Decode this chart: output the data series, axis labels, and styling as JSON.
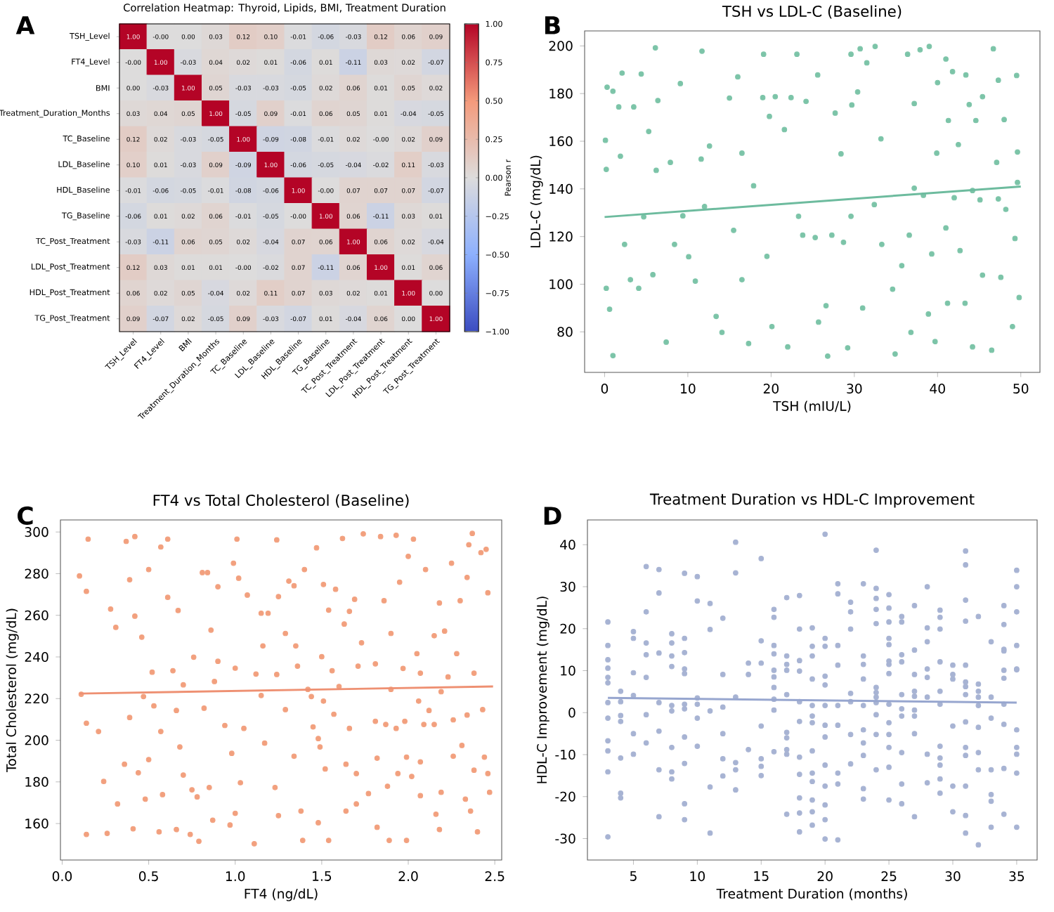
{
  "chart_data": [
    {
      "type": "heatmap",
      "title": "Correlation Heatmap: Thyroid, Lipids, BMI, Treatment Duration",
      "annotations": [
        "A"
      ],
      "categories": [
        "TSH_Level",
        "FT4_Level",
        "BMI",
        "Treatment_Duration_Months",
        "TC_Baseline",
        "LDL_Baseline",
        "HDL_Baseline",
        "TG_Baseline",
        "TC_Post_Treatment",
        "LDL_Post_Treatment",
        "HDL_Post_Treatment",
        "TG_Post_Treatment"
      ],
      "y_categories": [
        "TSH_Level",
        "FT4_Level",
        "BMI",
        "Treatment_Duration_Months",
        "TC_Baseline",
        "LDL_Baseline",
        "HDL_Baseline",
        "TG_Baseline",
        "TC_Post_Treatment",
        "LDL_Post_Treatment",
        "HDL_Post_Treatment",
        "TG_Post_Treatment"
      ],
      "cells": [
        [
          1.0,
          0,
          0,
          0.03,
          0.12,
          0.1,
          -0.01,
          -0.06,
          -0.03,
          0.12,
          0.06,
          0.09
        ],
        [
          0,
          1.0,
          -0.03,
          0.04,
          0.02,
          0.01,
          -0.06,
          0.01,
          -0.11,
          0.03,
          0.02,
          -0.07
        ],
        [
          0,
          -0.03,
          1.0,
          0.05,
          -0.03,
          -0.03,
          -0.05,
          0.02,
          0.06,
          0.01,
          0.05,
          0.02
        ],
        [
          0.03,
          0.04,
          0.05,
          1.0,
          -0.05,
          0.09,
          -0.01,
          0.06,
          0.05,
          0.01,
          -0.04,
          -0.05
        ],
        [
          0.12,
          0.02,
          -0.03,
          -0.05,
          1.0,
          -0.09,
          -0.08,
          -0.01,
          0.02,
          0,
          0.02,
          0.09
        ],
        [
          0.1,
          0.01,
          -0.03,
          0.09,
          -0.09,
          1.0,
          -0.06,
          -0.05,
          -0.04,
          -0.02,
          0.11,
          -0.03
        ],
        [
          -0.01,
          -0.06,
          -0.05,
          -0.01,
          -0.08,
          -0.06,
          1.0,
          0,
          0.07,
          0.07,
          0.07,
          -0.07
        ],
        [
          -0.06,
          0.01,
          0.02,
          0.06,
          -0.01,
          -0.05,
          0,
          1.0,
          0.06,
          -0.11,
          0.03,
          0.01
        ],
        [
          -0.03,
          -0.11,
          0.06,
          0.05,
          0.02,
          -0.04,
          0.07,
          0.06,
          1.0,
          0.06,
          0.02,
          -0.04
        ],
        [
          0.12,
          0.03,
          0.01,
          0.01,
          0,
          -0.02,
          0.07,
          -0.11,
          0.06,
          1.0,
          0.01,
          0.06
        ],
        [
          0.06,
          0.02,
          0.05,
          -0.04,
          0.02,
          0.11,
          0.07,
          0.03,
          0.02,
          0.01,
          1.0,
          0
        ],
        [
          0.09,
          -0.07,
          0.02,
          -0.05,
          0.09,
          -0.03,
          -0.07,
          0.01,
          -0.04,
          0.06,
          0,
          1.0
        ]
      ],
      "cell_labels": [
        [
          "1.00",
          "-0.00",
          "0.00",
          "0.03",
          "0.12",
          "0.10",
          "-0.01",
          "-0.06",
          "-0.03",
          "0.12",
          "0.06",
          "0.09"
        ],
        [
          "-0.00",
          "1.00",
          "-0.03",
          "0.04",
          "0.02",
          "0.01",
          "-0.06",
          "0.01",
          "-0.11",
          "0.03",
          "0.02",
          "-0.07"
        ],
        [
          "0.00",
          "-0.03",
          "1.00",
          "0.05",
          "-0.03",
          "-0.03",
          "-0.05",
          "0.02",
          "0.06",
          "0.01",
          "0.05",
          "0.02"
        ],
        [
          "0.03",
          "0.04",
          "0.05",
          "1.00",
          "-0.05",
          "0.09",
          "-0.01",
          "0.06",
          "0.05",
          "0.01",
          "-0.04",
          "-0.05"
        ],
        [
          "0.12",
          "0.02",
          "-0.03",
          "-0.05",
          "1.00",
          "-0.09",
          "-0.08",
          "-0.01",
          "0.02",
          "-0.00",
          "0.02",
          "0.09"
        ],
        [
          "0.10",
          "0.01",
          "-0.03",
          "0.09",
          "-0.09",
          "1.00",
          "-0.06",
          "-0.05",
          "-0.04",
          "-0.02",
          "0.11",
          "-0.03"
        ],
        [
          "-0.01",
          "-0.06",
          "-0.05",
          "-0.01",
          "-0.08",
          "-0.06",
          "1.00",
          "-0.00",
          "0.07",
          "0.07",
          "0.07",
          "-0.07"
        ],
        [
          "-0.06",
          "0.01",
          "0.02",
          "0.06",
          "-0.01",
          "-0.05",
          "-0.00",
          "1.00",
          "0.06",
          "-0.11",
          "0.03",
          "0.01"
        ],
        [
          "-0.03",
          "-0.11",
          "0.06",
          "0.05",
          "0.02",
          "-0.04",
          "0.07",
          "0.06",
          "1.00",
          "0.06",
          "0.02",
          "-0.04"
        ],
        [
          "0.12",
          "0.03",
          "0.01",
          "0.01",
          "-0.00",
          "-0.02",
          "0.07",
          "-0.11",
          "0.06",
          "1.00",
          "0.01",
          "0.06"
        ],
        [
          "0.06",
          "0.02",
          "0.05",
          "-0.04",
          "0.02",
          "0.11",
          "0.07",
          "0.03",
          "0.02",
          "0.01",
          "1.00",
          "0.00"
        ],
        [
          "0.09",
          "-0.07",
          "0.02",
          "-0.05",
          "0.09",
          "-0.03",
          "-0.07",
          "0.01",
          "-0.04",
          "0.06",
          "0.00",
          "1.00"
        ]
      ],
      "clim": [
        -1,
        1
      ],
      "clabel": "Pearson r",
      "cticks": [
        {
          "value": -1,
          "label": "−1.00"
        },
        {
          "value": -0.75,
          "label": "−0.75"
        },
        {
          "value": -0.5,
          "label": "−0.50"
        },
        {
          "value": -0.25,
          "label": "−0.25"
        },
        {
          "value": 0,
          "label": "0.00"
        },
        {
          "value": 0.25,
          "label": "0.25"
        },
        {
          "value": 0.5,
          "label": "0.50"
        },
        {
          "value": 0.75,
          "label": "0.75"
        },
        {
          "value": 1,
          "label": "1.00"
        }
      ]
    },
    {
      "type": "scatter",
      "title": "TSH vs LDL-C (Baseline)",
      "annotations": [
        "B"
      ],
      "xlabel": "TSH (mIU/L)",
      "ylabel": "LDL-C (mg/dL)",
      "xlim": [
        -2.4,
        52.3
      ],
      "ylim": [
        63,
        206.3
      ],
      "xticks": [
        0,
        10,
        20,
        30,
        40,
        50
      ],
      "yticks": [
        80,
        100,
        120,
        140,
        160,
        180,
        200
      ],
      "series": [
        {
          "type": "scatter",
          "color": "#7cc4a8",
          "x": [
            0.2,
            0.3,
            0.1,
            0.2,
            0.6,
            1.0,
            1.0,
            1.7,
            1.9,
            2.1,
            2.4,
            3.1,
            3.5,
            4.1,
            4.4,
            4.7,
            5.3,
            5.8,
            6.1,
            6.4,
            6.2,
            7.4,
            7.9,
            8.4,
            9.1,
            9.4,
            10.1,
            10.9,
            11.7,
            11.6,
            12.0,
            12.6,
            13.4,
            14.1,
            15.0,
            15.5,
            16.0,
            16.5,
            16.5,
            17.3,
            17.9,
            19.0,
            19.1,
            19.5,
            19.8,
            20.1,
            20.5,
            21.6,
            22.0,
            22.4,
            23.1,
            23.3,
            23.8,
            24.2,
            25.3,
            25.6,
            25.7,
            26.6,
            26.8,
            27.3,
            27.7,
            28.4,
            28.7,
            29.2,
            29.6,
            29.7,
            29.6,
            30.4,
            30.7,
            31.0,
            31.5,
            32.4,
            32.5,
            33.2,
            33.3,
            34.6,
            34.9,
            35.7,
            36.4,
            36.6,
            36.8,
            37.2,
            37.2,
            37.9,
            38.3,
            38.9,
            39.0,
            39.3,
            40.0,
            39.9,
            39.7,
            41.0,
            41.0,
            41.3,
            41.2,
            41.8,
            42.0,
            42.5,
            42.7,
            43.3,
            43.4,
            43.8,
            44.2,
            44.2,
            44.6,
            45.1,
            45.4,
            45.4,
            46.5,
            46.7,
            47.1,
            47.3,
            47.3,
            47.6,
            48.0,
            48.2,
            49.0,
            49.3,
            49.5,
            49.6,
            49.6,
            49.8
          ],
          "values": [
            98.3,
            182.7,
            160.4,
            148.2,
            89.5,
            70,
            181,
            174.4,
            153.7,
            188.6,
            116.7,
            101.9,
            174.4,
            98.3,
            188.2,
            128.3,
            164.1,
            104,
            199.2,
            177.1,
            147.8,
            75.7,
            151.1,
            116.7,
            184.2,
            128.7,
            111.5,
            101.3,
            197.8,
            152.5,
            132.6,
            158,
            86.5,
            79.8,
            178.1,
            122.6,
            187,
            155,
            101.9,
            75.1,
            141.3,
            178.3,
            196.5,
            111.7,
            170.4,
            82.2,
            178.7,
            164.9,
            73.7,
            178.3,
            196.5,
            128.5,
            120.6,
            176.7,
            119.6,
            187.8,
            84.1,
            91,
            69.8,
            120.6,
            171.8,
            154.7,
            117.6,
            73.3,
            196.5,
            175.2,
            128.5,
            180.7,
            198.8,
            90,
            192.9,
            133.4,
            199.8,
            161,
            116.7,
            97.9,
            70.7,
            107.8,
            196.5,
            120.6,
            79.8,
            175.8,
            140.3,
            198.4,
            137.3,
            87.5,
            199.8,
            112.7,
            184.6,
            155,
            75.9,
            194.5,
            123.6,
            168.7,
            92,
            189.2,
            136.3,
            158.6,
            114.1,
            92,
            187.8,
            175.4,
            139.3,
            73.7,
            168.7,
            135.4,
            178.7,
            103.8,
            72.3,
            198.8,
            151.1,
            185.6,
            135.8,
            102.9,
            169.1,
            131.4,
            82.2,
            119.2,
            187.6,
            155.5,
            142.7,
            94.4
          ]
        },
        {
          "type": "line",
          "color": "#6dbb9e",
          "x": [
            0,
            50
          ],
          "values": [
            128.2,
            141
          ]
        }
      ]
    },
    {
      "type": "scatter",
      "title": "FT4 vs Total Cholesterol (Baseline)",
      "annotations": [
        "C"
      ],
      "xlabel": "FT4 (ng/dL)",
      "ylabel": "Total Cholesterol (mg/dL)",
      "xlim": [
        -0.01,
        2.54
      ],
      "ylim": [
        142.5,
        305.8
      ],
      "xticks": [
        {
          "value": 0,
          "label": "0.0"
        },
        {
          "value": 0.5,
          "label": "0.5"
        },
        {
          "value": 1,
          "label": "1.0"
        },
        {
          "value": 1.5,
          "label": "1.5"
        },
        {
          "value": 2,
          "label": "2.0"
        },
        {
          "value": 2.5,
          "label": "2.5"
        }
      ],
      "yticks": [
        160,
        180,
        200,
        220,
        240,
        260,
        280,
        300
      ],
      "series": [
        {
          "type": "scatter",
          "color": "#f2a07e",
          "x": [
            0.1,
            0.11,
            0.14,
            0.15,
            0.14,
            0.14,
            0.21,
            0.24,
            0.26,
            0.28,
            0.31,
            0.32,
            0.37,
            0.36,
            0.39,
            0.39,
            0.41,
            0.42,
            0.42,
            0.44,
            0.46,
            0.47,
            0.48,
            0.5,
            0.5,
            0.52,
            0.53,
            0.56,
            0.57,
            0.57,
            0.58,
            0.61,
            0.61,
            0.64,
            0.66,
            0.66,
            0.67,
            0.68,
            0.7,
            0.7,
            0.74,
            0.75,
            0.76,
            0.78,
            0.79,
            0.81,
            0.82,
            0.84,
            0.85,
            0.86,
            0.87,
            0.88,
            0.9,
            0.9,
            0.94,
            0.97,
            0.98,
            0.99,
            1.0,
            1.0,
            1.01,
            1.02,
            1.03,
            1.05,
            1.07,
            1.11,
            1.12,
            1.15,
            1.15,
            1.16,
            1.17,
            1.19,
            1.23,
            1.24,
            1.24,
            1.25,
            1.25,
            1.29,
            1.29,
            1.31,
            1.34,
            1.34,
            1.35,
            1.36,
            1.38,
            1.39,
            1.4,
            1.42,
            1.44,
            1.45,
            1.47,
            1.48,
            1.48,
            1.49,
            1.5,
            1.51,
            1.51,
            1.52,
            1.54,
            1.54,
            1.56,
            1.57,
            1.58,
            1.6,
            1.62,
            1.63,
            1.64,
            1.64,
            1.66,
            1.66,
            1.69,
            1.7,
            1.71,
            1.7,
            1.73,
            1.74,
            1.77,
            1.81,
            1.81,
            1.82,
            1.84,
            1.82,
            1.86,
            1.87,
            1.88,
            1.9,
            1.89,
            1.9,
            1.93,
            1.93,
            1.94,
            1.95,
            1.97,
            1.99,
            1.98,
            1.99,
            2.0,
            2.02,
            2.03,
            2.05,
            2.06,
            2.07,
            2.07,
            2.09,
            2.07,
            2.1,
            2.12,
            2.15,
            2.15,
            2.16,
            2.18,
            2.19,
            2.18,
            2.19,
            2.21,
            2.23,
            2.25,
            2.26,
            2.26,
            2.28,
            2.3,
            2.31,
            2.33,
            2.34,
            2.34,
            2.35,
            2.36,
            2.37,
            2.38,
            2.38,
            2.4,
            2.42,
            2.43,
            2.44,
            2.45,
            2.46,
            2.46,
            2.47
          ],
          "values": [
            278.9,
            222.1,
            271.5,
            296.6,
            154.8,
            208.2,
            204.2,
            180.2,
            155.3,
            263,
            254.2,
            169.4,
            295.5,
            188.5,
            277.1,
            210.9,
            157.5,
            259.6,
            297.8,
            184.4,
            249.5,
            221,
            171.7,
            282,
            190.7,
            232.7,
            216.5,
            156,
            292.8,
            204.2,
            173.9,
            296.6,
            268.6,
            233.4,
            157.1,
            214.3,
            262.3,
            196.8,
            226.6,
            183.3,
            154.8,
            176.2,
            239.9,
            172.8,
            151.5,
            280.5,
            215.4,
            280.5,
            177.3,
            252.9,
            161.6,
            228.2,
            273.7,
            237.9,
            207.1,
            159.3,
            193.7,
            285,
            234.6,
            164.9,
            296.6,
            277.8,
            179.6,
            205.7,
            269.7,
            150.3,
            231.8,
            221.5,
            261,
            245.3,
            198.6,
            261,
            177.3,
            296.2,
            231.6,
            163.8,
            269,
            251.3,
            214.7,
            276.4,
            192.3,
            274.2,
            245.3,
            235.6,
            166,
            151.9,
            282,
            224.4,
            221,
            206.4,
            292.4,
            200.8,
            160.4,
            196.8,
            240.1,
            218.8,
            274.8,
            186.2,
            151.9,
            262.5,
            233.4,
            212.5,
            272.5,
            225.8,
            296.9,
            255.8,
            166,
            188.5,
            261.9,
            205.7,
            267.7,
            184,
            235.6,
            169.4,
            246.8,
            299.1,
            174.4,
            236.7,
            209.1,
            158.2,
            297.8,
            191.4,
            267,
            207.6,
            177.9,
            224.4,
            151.9,
            251.3,
            298.4,
            205.7,
            184,
            275.9,
            234.5,
            191.9,
            209.1,
            151.9,
            288.3,
            182.6,
            296.6,
            241.6,
            218.8,
            189.6,
            232.2,
            207.6,
            173.4,
            282,
            214.3,
            207.6,
            250.2,
            164.5,
            265.9,
            223.3,
            157.1,
            175,
            252.4,
            230.4,
            285,
            209.8,
            192.3,
            241.6,
            267,
            197.5,
            171.7,
            278.2,
            212.1,
            293.9,
            166,
            299.3,
            232.2,
            185.6,
            156,
            290.1,
            214.7,
            191.9,
            291.7,
            270.8,
            184,
            175
          ]
        },
        {
          "type": "line",
          "color": "#ee9072",
          "x": [
            0.1,
            2.49
          ],
          "values": [
            222.4,
            225.8
          ]
        }
      ]
    },
    {
      "type": "scatter",
      "title": "Treatment Duration vs HDL-C Improvement",
      "annotations": [
        "D"
      ],
      "xlabel": "Treatment Duration (months)",
      "ylabel": "HDL-C Improvement (mg/dL)",
      "xlim": [
        1.4,
        36.6
      ],
      "ylim": [
        -35.1,
        45.9
      ],
      "xticks": [
        5,
        10,
        15,
        20,
        25,
        30,
        35
      ],
      "yticks": [
        -30,
        -20,
        -10,
        0,
        10,
        20,
        30,
        40
      ],
      "series": [
        {
          "type": "scatter",
          "color": "#a7b3d3",
          "x": [
            3,
            3,
            3,
            3,
            3,
            3,
            3,
            3,
            3,
            3,
            3,
            3,
            4,
            4,
            4,
            4,
            4,
            4,
            4,
            5,
            5,
            5,
            5,
            5,
            5,
            6,
            6,
            6,
            6,
            6,
            6,
            6,
            7,
            7,
            7,
            7,
            7,
            7,
            7,
            8,
            8,
            8,
            8,
            8,
            8,
            8,
            8,
            8,
            9,
            9,
            9,
            9,
            9,
            9,
            9,
            9,
            9,
            9,
            9,
            10,
            10,
            10,
            10,
            10,
            10,
            11,
            11,
            11,
            11,
            11,
            12,
            12,
            12,
            12,
            12,
            12,
            13,
            13,
            13,
            13,
            13,
            13,
            14,
            14,
            14,
            15,
            15,
            15,
            15,
            15,
            15,
            15,
            16,
            16,
            16,
            16,
            16,
            16,
            16,
            16,
            16,
            16,
            17,
            17,
            17,
            17,
            17,
            17,
            17,
            17,
            17,
            17,
            18,
            18,
            18,
            18,
            18,
            18,
            18,
            18,
            18,
            18,
            18,
            19,
            19,
            19,
            19,
            19,
            19,
            19,
            19,
            19,
            19,
            19,
            19,
            19,
            20,
            20,
            20,
            20,
            20,
            20,
            20,
            20,
            20,
            20,
            20,
            20,
            20,
            21,
            21,
            21,
            21,
            21,
            21,
            21,
            21,
            21,
            22,
            22,
            22,
            22,
            22,
            22,
            22,
            23,
            23,
            23,
            23,
            23,
            23,
            23,
            23,
            23,
            23,
            24,
            24,
            24,
            24,
            24,
            24,
            24,
            24,
            24,
            24,
            24,
            24,
            25,
            25,
            25,
            25,
            25,
            25,
            25,
            25,
            25,
            25,
            25,
            25,
            25,
            25,
            26,
            26,
            26,
            26,
            26,
            26,
            26,
            26,
            26,
            26,
            27,
            27,
            27,
            27,
            27,
            27,
            27,
            27,
            27,
            28,
            28,
            28,
            28,
            28,
            28,
            28,
            28,
            29,
            29,
            29,
            29,
            29,
            29,
            29,
            29,
            29,
            29,
            29,
            30,
            30,
            30,
            30,
            30,
            30,
            31,
            31,
            31,
            31,
            31,
            31,
            31,
            31,
            31,
            31,
            31,
            31,
            31,
            31,
            32,
            32,
            32,
            32,
            32,
            32,
            32,
            32,
            32,
            33,
            33,
            33,
            33,
            33,
            33,
            33,
            34,
            34,
            34,
            34,
            34,
            34,
            34,
            34,
            34,
            34,
            35,
            35,
            35,
            35,
            35,
            35,
            35,
            35,
            35,
            35,
            35
          ],
          "values": [
            21.6,
            16,
            12.6,
            10.6,
            8.4,
            7.1,
            2.4,
            -1.3,
            -6.7,
            -9.1,
            -14.1,
            -29.6,
            5.1,
            2.6,
            -0.7,
            -2.1,
            -10.8,
            -19.2,
            -20.3,
            19.3,
            17.7,
            9.5,
            4.1,
            -5,
            -9.9,
            34.8,
            24,
            16.6,
            13.8,
            8.4,
            -0.5,
            -7.2,
            34.1,
            28.5,
            14.2,
            2.4,
            -4.4,
            -13.6,
            -24.8,
            18.8,
            16.6,
            13.5,
            11,
            1.7,
            0.4,
            -8.3,
            -14.1,
            -15.8,
            33.2,
            17.7,
            14.3,
            10.4,
            9.3,
            2,
            0.9,
            -5.8,
            -12.1,
            -21.7,
            -25.5,
            32.4,
            26.6,
            3.5,
            2,
            -1.3,
            -8,
            26,
            19.8,
            0.4,
            -17.7,
            -28.7,
            22.5,
            9.1,
            1.3,
            -5,
            -11,
            -15.1,
            40.6,
            33.3,
            3.7,
            -11.9,
            -13.6,
            -18.4,
            11.8,
            9.1,
            -8.8,
            36.7,
            17.1,
            11.8,
            -3.2,
            -11,
            -12.8,
            -15,
            24.6,
            22.7,
            16,
            14,
            10.1,
            8.5,
            6,
            3.2,
            0.6,
            -9.3,
            27.4,
            13.5,
            11.5,
            10.1,
            4.3,
            -4.7,
            -6,
            -8.8,
            -9.9,
            -24.2,
            27.9,
            19.9,
            12.4,
            9.9,
            2.6,
            -2.1,
            -10.6,
            -14.7,
            -20.3,
            -23.9,
            -28.4,
            20.2,
            15.8,
            13.5,
            8,
            1.7,
            -0.8,
            -2.4,
            -9.1,
            -14.4,
            -16.4,
            -20.8,
            -23.6,
            -26.8,
            42.5,
            17.7,
            15.8,
            8.7,
            6.6,
            1.7,
            -3,
            -5.8,
            -12.5,
            -17.5,
            -22,
            -25.5,
            -30.1,
            30.7,
            28.3,
            16,
            11.3,
            1.7,
            -3,
            -14.4,
            -17,
            -30.3,
            26.3,
            24,
            19.9,
            4.6,
            2.6,
            -5.2,
            -12.2,
            30.7,
            13.5,
            11.5,
            8,
            1.7,
            -4.1,
            -7.2,
            -10.2,
            -18.1,
            -20.6,
            38.7,
            29.6,
            27.2,
            24.6,
            21.2,
            6,
            4.8,
            3.7,
            2.4,
            -0.5,
            -5.2,
            -13.6,
            28.1,
            24.9,
            21.6,
            17.7,
            16.2,
            12.3,
            11.5,
            9.3,
            2,
            -2.4,
            -5.2,
            -8.3,
            -13,
            -20.8,
            22.9,
            21.6,
            13.8,
            12.1,
            4.3,
            0.9,
            -0.8,
            -9.5,
            -17,
            -21.7,
            25.5,
            14.9,
            9.1,
            5.1,
            3.9,
            0.6,
            -0.8,
            -5,
            -24.8,
            30,
            20.2,
            16.9,
            10.4,
            8.4,
            3.7,
            -9.9,
            -16.7,
            24.4,
            22.7,
            19.9,
            12.1,
            5.1,
            2,
            -8,
            -10.8,
            -12.5,
            -15.8,
            -19.2,
            11.3,
            9.1,
            8,
            -3.2,
            -17.5,
            -23.6,
            38.5,
            35.2,
            26.8,
            21.8,
            11.3,
            7.3,
            6.2,
            4.3,
            -2.2,
            -8.3,
            -10.2,
            -17.5,
            -24.5,
            -28.7,
            22.9,
            6.8,
            5.1,
            3.7,
            1.7,
            -3.5,
            -9.5,
            -13.6,
            -31.5,
            16.9,
            3.7,
            -1.3,
            -13.6,
            -19.5,
            -21.1,
            -27.3,
            25.5,
            21,
            15.1,
            14.7,
            10.1,
            8.2,
            2,
            -2.8,
            -13.3,
            -24.2,
            33.9,
            30,
            24,
            16,
            10.4,
            10.2,
            -4.1,
            -8.3,
            -9.9,
            -14.4,
            -27.3
          ]
        },
        {
          "type": "line",
          "color": "#97a6cf",
          "x": [
            3,
            35
          ],
          "values": [
            3.5,
            2.4
          ]
        }
      ]
    }
  ]
}
